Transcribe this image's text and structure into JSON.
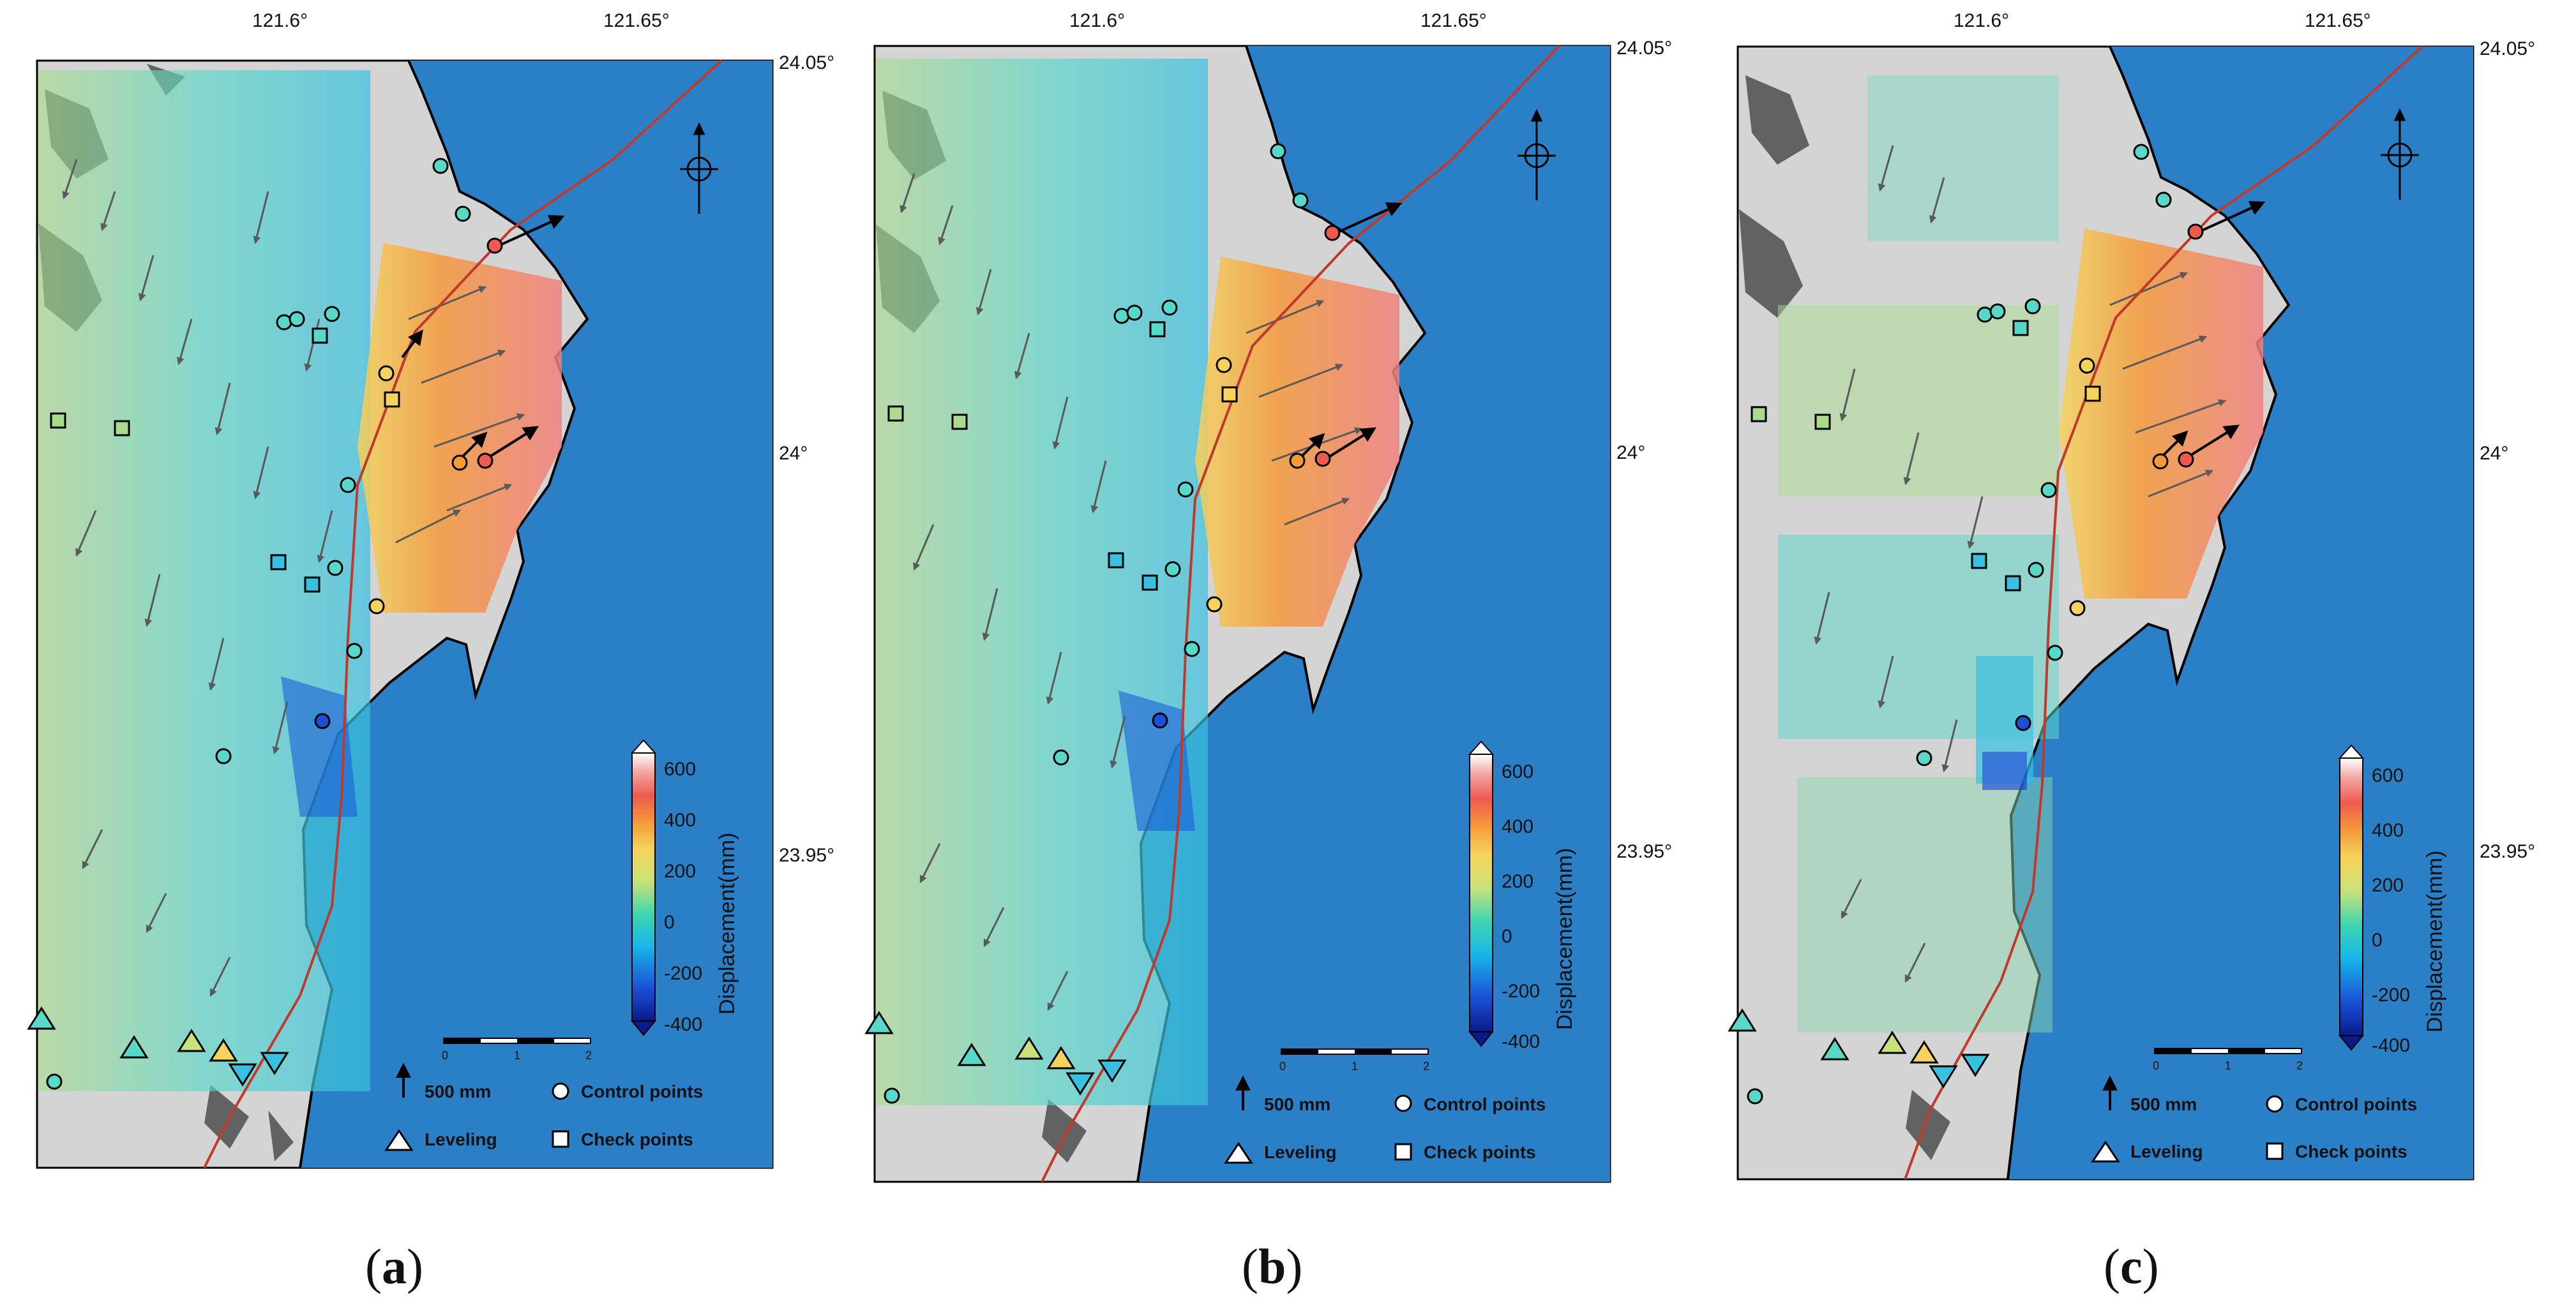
{
  "panels": [
    {
      "id": "a",
      "caption_letter": "a",
      "lon_ticks": [
        "121.6°",
        "121.65°"
      ],
      "lat_ticks": [
        "24.05°",
        "24°",
        "23.95°"
      ],
      "colorbar": {
        "title": "Displacement(mm)",
        "ticks": [
          "600",
          "400",
          "200",
          "0",
          "-200",
          "-400"
        ]
      },
      "legend": {
        "vector_scale": "500 mm",
        "control_points": "Control points",
        "leveling": "Leveling",
        "check_points": "Check points"
      },
      "scalebar_ticks": [
        "0",
        "1",
        "2"
      ]
    },
    {
      "id": "b",
      "caption_letter": "b",
      "lon_ticks": [
        "121.6°",
        "121.65°"
      ],
      "lat_ticks": [
        "24.05°",
        "24°",
        "23.95°"
      ],
      "colorbar": {
        "title": "Displacement(mm)",
        "ticks": [
          "600",
          "400",
          "200",
          "0",
          "-200",
          "-400"
        ]
      },
      "legend": {
        "vector_scale": "500 mm",
        "control_points": "Control points",
        "leveling": "Leveling",
        "check_points": "Check points"
      },
      "scalebar_ticks": [
        "0",
        "1",
        "2"
      ]
    },
    {
      "id": "c",
      "caption_letter": "c",
      "lon_ticks": [
        "121.6°",
        "121.65°"
      ],
      "lat_ticks": [
        "24.05°",
        "24°",
        "23.95°"
      ],
      "colorbar": {
        "title": "Displacement(mm)",
        "ticks": [
          "600",
          "400",
          "200",
          "0",
          "-200",
          "-400"
        ]
      },
      "legend": {
        "vector_scale": "500 mm",
        "control_points": "Control points",
        "leveling": "Leveling",
        "check_points": "Check points"
      },
      "scalebar_ticks": [
        "0",
        "1",
        "2"
      ]
    }
  ],
  "colors": {
    "sea": "#2a7fc6",
    "land": "#d4d4d4",
    "fault": "#c0392b",
    "vector": "#5a5a5a"
  }
}
